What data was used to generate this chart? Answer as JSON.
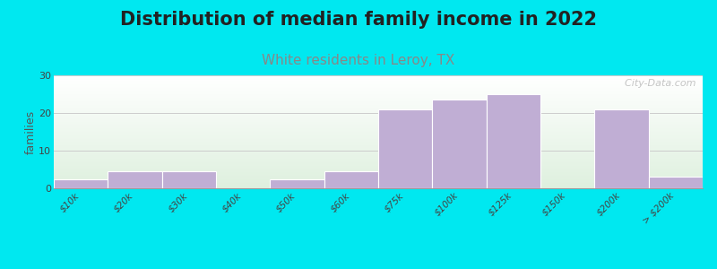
{
  "title": "Distribution of median family income in 2022",
  "subtitle": "White residents in Leroy, TX",
  "ylabel": "families",
  "categories": [
    "$10k",
    "$20k",
    "$30k",
    "$40k",
    "$50k",
    "$60k",
    "$75k",
    "$100k",
    "$125k",
    "$150k",
    "$200k",
    "> $200k"
  ],
  "values": [
    2.5,
    4.5,
    4.5,
    0,
    2.5,
    4.5,
    21,
    23.5,
    25,
    0,
    21,
    3
  ],
  "bar_color": "#c0aed4",
  "bar_edge_color": "#c0aed4",
  "background_outer": "#00e8f0",
  "ylim": [
    0,
    30
  ],
  "yticks": [
    0,
    10,
    20,
    30
  ],
  "grid_color": "#cccccc",
  "title_fontsize": 15,
  "subtitle_fontsize": 11,
  "subtitle_color": "#888888",
  "ylabel_fontsize": 9,
  "tick_fontsize": 7.5,
  "watermark": "  City-Data.com"
}
